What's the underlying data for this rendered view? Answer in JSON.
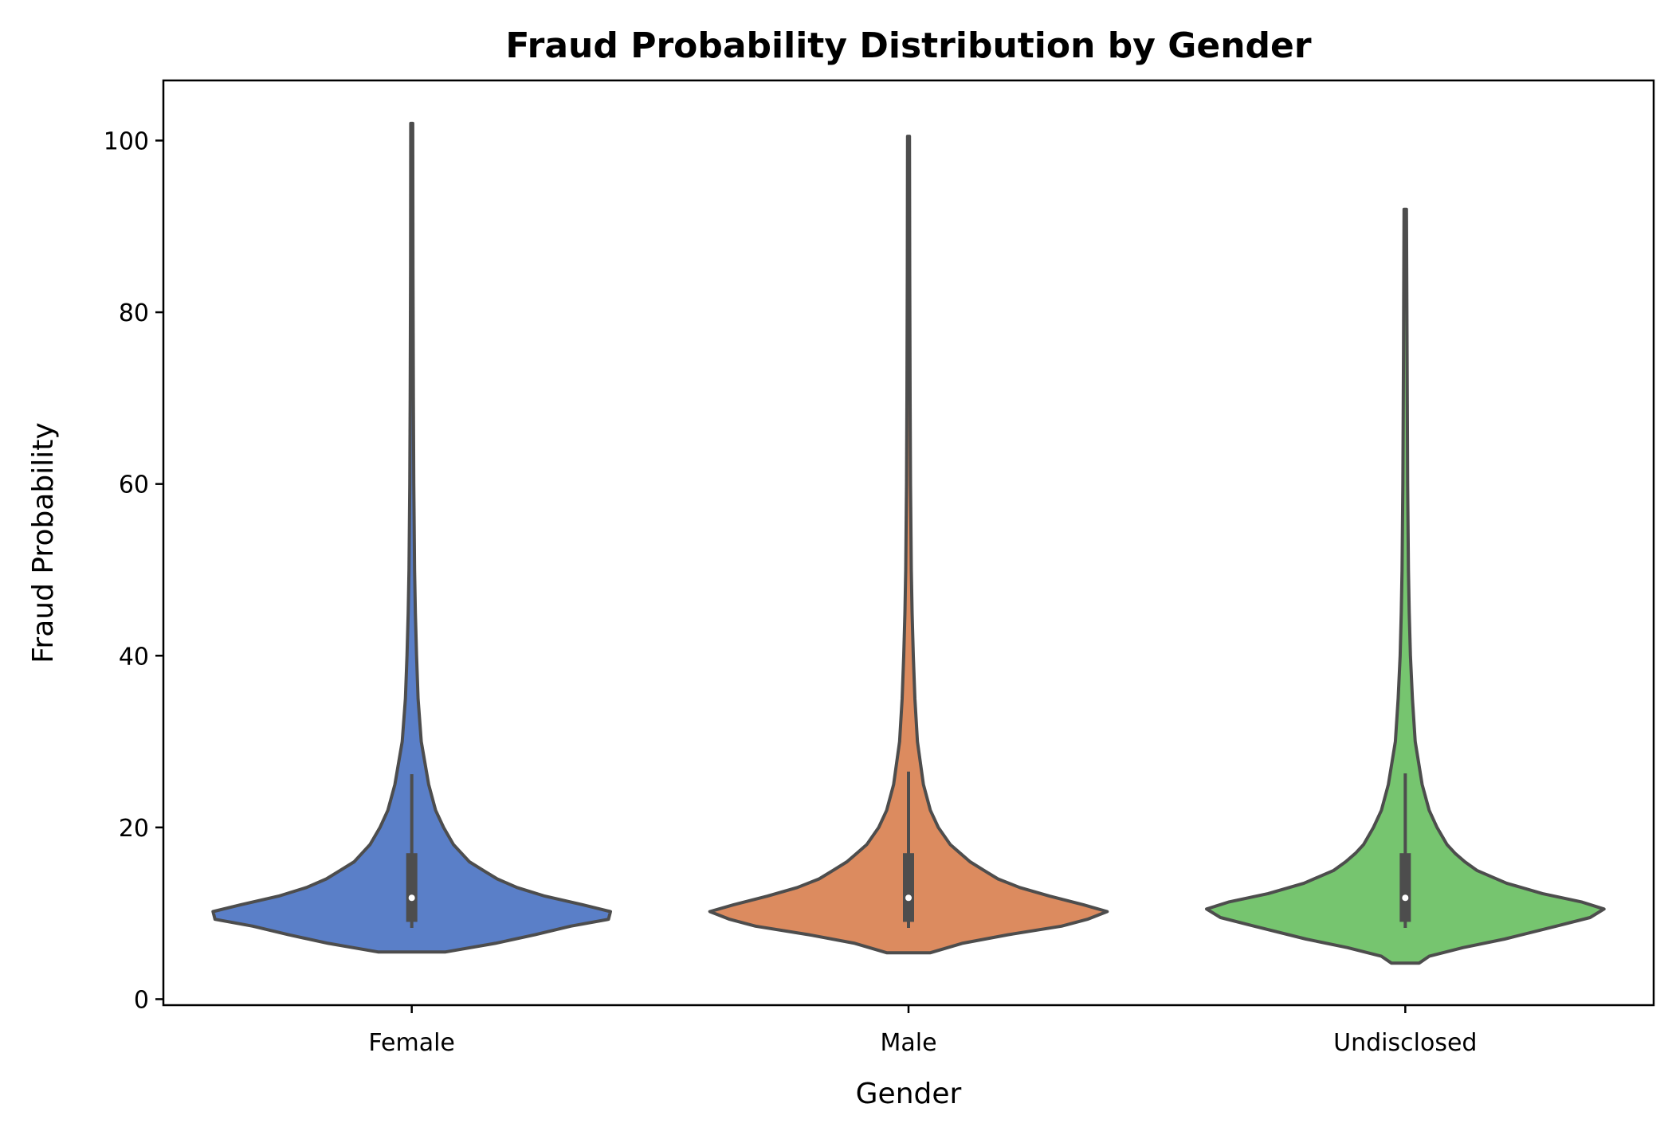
{
  "chart_data": {
    "type": "violin",
    "title": "Fraud Probability Distribution by Gender",
    "xlabel": "Gender",
    "ylabel": "Fraud Probability",
    "ylim": [
      -0.7,
      107.0
    ],
    "yticks": [
      0,
      20,
      40,
      60,
      80,
      100
    ],
    "grid": false,
    "legend": "none",
    "categories": [
      "Female",
      "Male",
      "Undisclosed"
    ],
    "colors": [
      "#5a7fc8",
      "#dc8b5f",
      "#76c56f"
    ],
    "outline_color": "#4d4d4d",
    "series": [
      {
        "category": "Female",
        "min": 5.5,
        "q1": 9.0,
        "median": 11.8,
        "q3": 17.0,
        "whisker_low": 8.3,
        "whisker_high": 26.2,
        "max": 102.0,
        "density": [
          [
            5.5,
            0.17
          ],
          [
            6.5,
            0.42
          ],
          [
            7.5,
            0.62
          ],
          [
            8.5,
            0.8
          ],
          [
            9.3,
            0.99
          ],
          [
            10.2,
            1.0
          ],
          [
            11.0,
            0.86
          ],
          [
            12.0,
            0.67
          ],
          [
            13.0,
            0.53
          ],
          [
            14.0,
            0.43
          ],
          [
            15.0,
            0.36
          ],
          [
            16.0,
            0.29
          ],
          [
            17.0,
            0.25
          ],
          [
            18.0,
            0.21
          ],
          [
            20.0,
            0.16
          ],
          [
            22.0,
            0.12
          ],
          [
            25.0,
            0.085
          ],
          [
            30.0,
            0.048
          ],
          [
            35.0,
            0.032
          ],
          [
            40.0,
            0.024
          ],
          [
            45.0,
            0.018
          ],
          [
            50.0,
            0.014
          ],
          [
            60.0,
            0.01
          ],
          [
            70.0,
            0.008
          ],
          [
            85.0,
            0.006
          ],
          [
            102.0,
            0.005
          ]
        ]
      },
      {
        "category": "Male",
        "min": 5.4,
        "q1": 9.0,
        "median": 11.8,
        "q3": 17.0,
        "whisker_low": 8.3,
        "whisker_high": 26.5,
        "max": 100.5,
        "density": [
          [
            5.4,
            0.11
          ],
          [
            6.5,
            0.27
          ],
          [
            7.5,
            0.5
          ],
          [
            8.5,
            0.77
          ],
          [
            9.3,
            0.9
          ],
          [
            10.2,
            1.0
          ],
          [
            11.0,
            0.88
          ],
          [
            12.0,
            0.71
          ],
          [
            13.0,
            0.56
          ],
          [
            14.0,
            0.45
          ],
          [
            15.0,
            0.38
          ],
          [
            16.0,
            0.31
          ],
          [
            17.0,
            0.26
          ],
          [
            18.0,
            0.21
          ],
          [
            20.0,
            0.15
          ],
          [
            22.0,
            0.11
          ],
          [
            25.0,
            0.075
          ],
          [
            30.0,
            0.045
          ],
          [
            35.0,
            0.032
          ],
          [
            40.0,
            0.024
          ],
          [
            45.0,
            0.018
          ],
          [
            50.0,
            0.014
          ],
          [
            60.0,
            0.01
          ],
          [
            70.0,
            0.008
          ],
          [
            85.0,
            0.006
          ],
          [
            100.5,
            0.005
          ]
        ]
      },
      {
        "category": "Undisclosed",
        "min": 4.2,
        "q1": 9.0,
        "median": 11.8,
        "q3": 17.0,
        "whisker_low": 8.3,
        "whisker_high": 26.3,
        "max": 92.0,
        "density": [
          [
            4.2,
            0.07
          ],
          [
            5.0,
            0.12
          ],
          [
            6.0,
            0.29
          ],
          [
            7.0,
            0.5
          ],
          [
            8.5,
            0.76
          ],
          [
            9.5,
            0.93
          ],
          [
            10.5,
            1.0
          ],
          [
            11.3,
            0.89
          ],
          [
            12.3,
            0.69
          ],
          [
            13.5,
            0.51
          ],
          [
            15.0,
            0.36
          ],
          [
            16.0,
            0.3
          ],
          [
            17.0,
            0.25
          ],
          [
            18.0,
            0.21
          ],
          [
            20.0,
            0.16
          ],
          [
            22.0,
            0.12
          ],
          [
            25.0,
            0.085
          ],
          [
            30.0,
            0.05
          ],
          [
            35.0,
            0.036
          ],
          [
            40.0,
            0.026
          ],
          [
            45.0,
            0.02
          ],
          [
            50.0,
            0.016
          ],
          [
            60.0,
            0.012
          ],
          [
            75.0,
            0.009
          ],
          [
            92.0,
            0.006
          ]
        ]
      }
    ]
  }
}
